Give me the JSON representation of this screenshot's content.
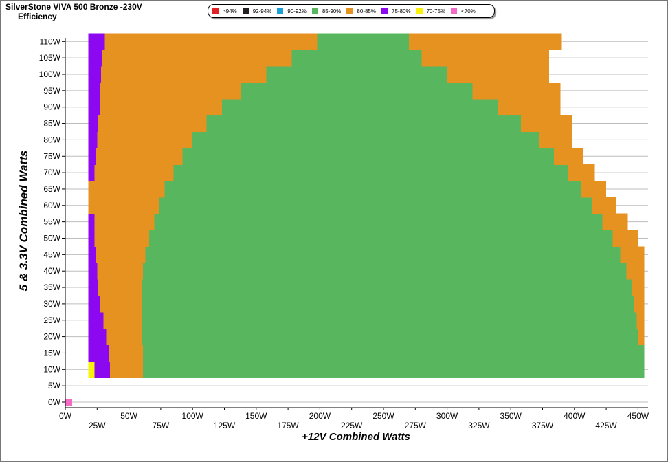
{
  "chart_data": {
    "type": "heatmap",
    "title": "SilverStone VIVA 500 Bronze -230V",
    "subtitle": "Efficiency",
    "xlabel": "+12V Combined Watts",
    "ylabel": "5 & 3.3V Combined Watts",
    "xlim": [
      0,
      455
    ],
    "ylim": [
      -2,
      112
    ],
    "x_ticks": [
      {
        "value": 0,
        "label": "0W",
        "row": "upper"
      },
      {
        "value": 25,
        "label": "25W",
        "row": "lower"
      },
      {
        "value": 50,
        "label": "50W",
        "row": "upper"
      },
      {
        "value": 75,
        "label": "75W",
        "row": "lower"
      },
      {
        "value": 100,
        "label": "100W",
        "row": "upper"
      },
      {
        "value": 125,
        "label": "125W",
        "row": "lower"
      },
      {
        "value": 150,
        "label": "150W",
        "row": "upper"
      },
      {
        "value": 175,
        "label": "175W",
        "row": "lower"
      },
      {
        "value": 200,
        "label": "200W",
        "row": "upper"
      },
      {
        "value": 225,
        "label": "225W",
        "row": "lower"
      },
      {
        "value": 250,
        "label": "250W",
        "row": "upper"
      },
      {
        "value": 275,
        "label": "275W",
        "row": "lower"
      },
      {
        "value": 300,
        "label": "300W",
        "row": "upper"
      },
      {
        "value": 325,
        "label": "325W",
        "row": "lower"
      },
      {
        "value": 350,
        "label": "350W",
        "row": "upper"
      },
      {
        "value": 375,
        "label": "375W",
        "row": "lower"
      },
      {
        "value": 400,
        "label": "400W",
        "row": "upper"
      },
      {
        "value": 425,
        "label": "425W",
        "row": "lower"
      },
      {
        "value": 450,
        "label": "450W",
        "row": "upper"
      }
    ],
    "y_ticks": [
      {
        "value": 0,
        "label": "0W"
      },
      {
        "value": 5,
        "label": "5W"
      },
      {
        "value": 10,
        "label": "10W"
      },
      {
        "value": 15,
        "label": "15W"
      },
      {
        "value": 20,
        "label": "20W"
      },
      {
        "value": 25,
        "label": "25W"
      },
      {
        "value": 30,
        "label": "30W"
      },
      {
        "value": 35,
        "label": "35W"
      },
      {
        "value": 40,
        "label": "40W"
      },
      {
        "value": 45,
        "label": "45W"
      },
      {
        "value": 50,
        "label": "50W"
      },
      {
        "value": 55,
        "label": "55W"
      },
      {
        "value": 60,
        "label": "60W"
      },
      {
        "value": 65,
        "label": "65W"
      },
      {
        "value": 70,
        "label": "70W"
      },
      {
        "value": 75,
        "label": "75W"
      },
      {
        "value": 80,
        "label": "80W"
      },
      {
        "value": 85,
        "label": "85W"
      },
      {
        "value": 90,
        "label": "90W"
      },
      {
        "value": 95,
        "label": "95W"
      },
      {
        "value": 100,
        "label": "100W"
      },
      {
        "value": 105,
        "label": "105W"
      },
      {
        "value": 110,
        "label": "110W"
      }
    ],
    "grid": true,
    "legend": {
      "position": "top",
      "items": [
        {
          "key": "gt94",
          "label": ">94%",
          "color": "#e32228"
        },
        {
          "key": "r92_94",
          "label": "92-94%",
          "color": "#231f20"
        },
        {
          "key": "r90_92",
          "label": "90-92%",
          "color": "#1aa0d8"
        },
        {
          "key": "r85_90",
          "label": "85-90%",
          "color": "#58b75e"
        },
        {
          "key": "r80_85",
          "label": "80-85%",
          "color": "#e69221"
        },
        {
          "key": "r75_80",
          "label": "75-80%",
          "color": "#8b08f0"
        },
        {
          "key": "r70_75",
          "label": "70-75%",
          "color": "#f9f20a"
        },
        {
          "key": "lt70",
          "label": "<70%",
          "color": "#f36bc4"
        }
      ]
    },
    "y_rows": [
      {
        "y": 10,
        "segments": [
          {
            "x0": 18,
            "x1": 23,
            "c": "r70_75"
          },
          {
            "x0": 23,
            "x1": 35,
            "c": "r75_80"
          },
          {
            "x0": 35,
            "x1": 61,
            "c": "r80_85"
          },
          {
            "x0": 61,
            "x1": 455,
            "c": "r85_90"
          }
        ]
      },
      {
        "y": 15,
        "segments": [
          {
            "x0": 18,
            "x1": 34,
            "c": "r75_80"
          },
          {
            "x0": 34,
            "x1": 61,
            "c": "r80_85"
          },
          {
            "x0": 61,
            "x1": 455,
            "c": "r85_90"
          }
        ]
      },
      {
        "y": 20,
        "segments": [
          {
            "x0": 18,
            "x1": 32,
            "c": "r75_80"
          },
          {
            "x0": 32,
            "x1": 60,
            "c": "r80_85"
          },
          {
            "x0": 60,
            "x1": 450,
            "c": "r85_90"
          },
          {
            "x0": 450,
            "x1": 455,
            "c": "r80_85"
          }
        ]
      },
      {
        "y": 25,
        "segments": [
          {
            "x0": 18,
            "x1": 30,
            "c": "r75_80"
          },
          {
            "x0": 30,
            "x1": 60,
            "c": "r80_85"
          },
          {
            "x0": 60,
            "x1": 449,
            "c": "r85_90"
          },
          {
            "x0": 449,
            "x1": 455,
            "c": "r80_85"
          }
        ]
      },
      {
        "y": 30,
        "segments": [
          {
            "x0": 18,
            "x1": 27,
            "c": "r75_80"
          },
          {
            "x0": 27,
            "x1": 60,
            "c": "r80_85"
          },
          {
            "x0": 60,
            "x1": 447,
            "c": "r85_90"
          },
          {
            "x0": 447,
            "x1": 455,
            "c": "r80_85"
          }
        ]
      },
      {
        "y": 35,
        "segments": [
          {
            "x0": 18,
            "x1": 26,
            "c": "r75_80"
          },
          {
            "x0": 26,
            "x1": 60,
            "c": "r80_85"
          },
          {
            "x0": 60,
            "x1": 445,
            "c": "r85_90"
          },
          {
            "x0": 445,
            "x1": 455,
            "c": "r80_85"
          }
        ]
      },
      {
        "y": 40,
        "segments": [
          {
            "x0": 18,
            "x1": 25,
            "c": "r75_80"
          },
          {
            "x0": 25,
            "x1": 61,
            "c": "r80_85"
          },
          {
            "x0": 61,
            "x1": 441,
            "c": "r85_90"
          },
          {
            "x0": 441,
            "x1": 455,
            "c": "r80_85"
          }
        ]
      },
      {
        "y": 45,
        "segments": [
          {
            "x0": 18,
            "x1": 24,
            "c": "r75_80"
          },
          {
            "x0": 24,
            "x1": 63,
            "c": "r80_85"
          },
          {
            "x0": 63,
            "x1": 436,
            "c": "r85_90"
          },
          {
            "x0": 436,
            "x1": 455,
            "c": "r80_85"
          }
        ]
      },
      {
        "y": 50,
        "segments": [
          {
            "x0": 18,
            "x1": 23,
            "c": "r75_80"
          },
          {
            "x0": 23,
            "x1": 66,
            "c": "r80_85"
          },
          {
            "x0": 66,
            "x1": 430,
            "c": "r85_90"
          },
          {
            "x0": 430,
            "x1": 450,
            "c": "r80_85"
          }
        ]
      },
      {
        "y": 55,
        "segments": [
          {
            "x0": 18,
            "x1": 23,
            "c": "r75_80"
          },
          {
            "x0": 23,
            "x1": 70,
            "c": "r80_85"
          },
          {
            "x0": 70,
            "x1": 422,
            "c": "r85_90"
          },
          {
            "x0": 422,
            "x1": 442,
            "c": "r80_85"
          }
        ]
      },
      {
        "y": 60,
        "segments": [
          {
            "x0": 18,
            "x1": 74,
            "c": "r80_85"
          },
          {
            "x0": 74,
            "x1": 414,
            "c": "r85_90"
          },
          {
            "x0": 414,
            "x1": 433,
            "c": "r80_85"
          }
        ]
      },
      {
        "y": 65,
        "segments": [
          {
            "x0": 18,
            "x1": 78,
            "c": "r80_85"
          },
          {
            "x0": 78,
            "x1": 405,
            "c": "r85_90"
          },
          {
            "x0": 405,
            "x1": 425,
            "c": "r80_85"
          }
        ]
      },
      {
        "y": 70,
        "segments": [
          {
            "x0": 18,
            "x1": 23,
            "c": "r75_80"
          },
          {
            "x0": 23,
            "x1": 85,
            "c": "r80_85"
          },
          {
            "x0": 85,
            "x1": 395,
            "c": "r85_90"
          },
          {
            "x0": 395,
            "x1": 416,
            "c": "r80_85"
          }
        ]
      },
      {
        "y": 75,
        "segments": [
          {
            "x0": 18,
            "x1": 24,
            "c": "r75_80"
          },
          {
            "x0": 24,
            "x1": 92,
            "c": "r80_85"
          },
          {
            "x0": 92,
            "x1": 384,
            "c": "r85_90"
          },
          {
            "x0": 384,
            "x1": 407,
            "c": "r80_85"
          }
        ]
      },
      {
        "y": 80,
        "segments": [
          {
            "x0": 18,
            "x1": 25,
            "c": "r75_80"
          },
          {
            "x0": 25,
            "x1": 100,
            "c": "r80_85"
          },
          {
            "x0": 100,
            "x1": 372,
            "c": "r85_90"
          },
          {
            "x0": 372,
            "x1": 398,
            "c": "r80_85"
          }
        ]
      },
      {
        "y": 85,
        "segments": [
          {
            "x0": 18,
            "x1": 26,
            "c": "r75_80"
          },
          {
            "x0": 26,
            "x1": 111,
            "c": "r80_85"
          },
          {
            "x0": 111,
            "x1": 358,
            "c": "r85_90"
          },
          {
            "x0": 358,
            "x1": 398,
            "c": "r80_85"
          }
        ]
      },
      {
        "y": 90,
        "segments": [
          {
            "x0": 18,
            "x1": 27,
            "c": "r75_80"
          },
          {
            "x0": 27,
            "x1": 123,
            "c": "r80_85"
          },
          {
            "x0": 123,
            "x1": 340,
            "c": "r85_90"
          },
          {
            "x0": 340,
            "x1": 389,
            "c": "r80_85"
          }
        ]
      },
      {
        "y": 95,
        "segments": [
          {
            "x0": 18,
            "x1": 27,
            "c": "r75_80"
          },
          {
            "x0": 27,
            "x1": 138,
            "c": "r80_85"
          },
          {
            "x0": 138,
            "x1": 320,
            "c": "r85_90"
          },
          {
            "x0": 320,
            "x1": 389,
            "c": "r80_85"
          }
        ]
      },
      {
        "y": 100,
        "segments": [
          {
            "x0": 18,
            "x1": 28,
            "c": "r75_80"
          },
          {
            "x0": 28,
            "x1": 158,
            "c": "r80_85"
          },
          {
            "x0": 158,
            "x1": 300,
            "c": "r85_90"
          },
          {
            "x0": 300,
            "x1": 380,
            "c": "r80_85"
          }
        ]
      },
      {
        "y": 105,
        "segments": [
          {
            "x0": 18,
            "x1": 29,
            "c": "r75_80"
          },
          {
            "x0": 29,
            "x1": 178,
            "c": "r80_85"
          },
          {
            "x0": 178,
            "x1": 280,
            "c": "r85_90"
          },
          {
            "x0": 280,
            "x1": 380,
            "c": "r80_85"
          }
        ]
      },
      {
        "y": 110,
        "segments": [
          {
            "x0": 18,
            "x1": 31,
            "c": "r75_80"
          },
          {
            "x0": 31,
            "x1": 198,
            "c": "r80_85"
          },
          {
            "x0": 198,
            "x1": 270,
            "c": "r85_90"
          },
          {
            "x0": 270,
            "x1": 390,
            "c": "r80_85"
          }
        ]
      }
    ],
    "points": [
      {
        "x": 0,
        "y": 0,
        "c": "lt70"
      }
    ]
  }
}
